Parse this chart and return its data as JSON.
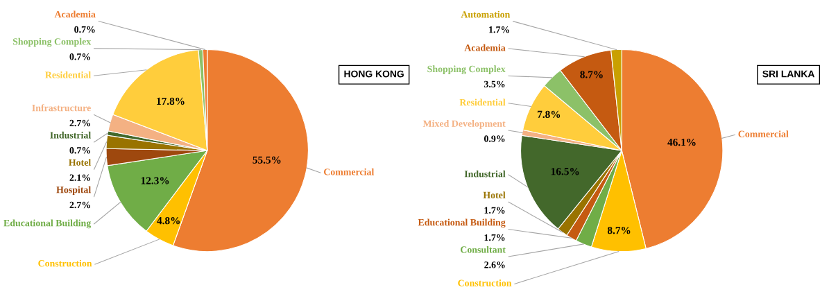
{
  "chart_data": [
    {
      "type": "pie",
      "title": "HONG KONG",
      "categories": [
        "Commercial",
        "Construction",
        "Educational Building",
        "Hospital",
        "Hotel",
        "Industrial",
        "Infrastructure",
        "Residential",
        "Shopping Complex",
        "Academia"
      ],
      "values": [
        55.5,
        4.8,
        12.3,
        2.7,
        2.1,
        0.7,
        2.7,
        17.8,
        0.7,
        0.7
      ],
      "value_labels": [
        "55.5%",
        "4.8%",
        "12.3%",
        "2.7%",
        "2.1%",
        "0.7%",
        "2.7%",
        "17.8%",
        "0.7%",
        "0.7%"
      ],
      "colors": [
        "#ed7d31",
        "#ffc000",
        "#70ad47",
        "#9e480e",
        "#997300",
        "#43682b",
        "#f4b183",
        "#ffcd3c",
        "#8cc168",
        "#ed7d31"
      ],
      "legend": false
    },
    {
      "type": "pie",
      "title": "SRI LANKA",
      "categories": [
        "Commercial",
        "Construction",
        "Consultant",
        "Educational Building",
        "Hotel",
        "Industrial",
        "Mixed Development",
        "Residential",
        "Shopping Complex",
        "Academia",
        "Automation"
      ],
      "values": [
        46.1,
        8.7,
        2.6,
        1.7,
        1.7,
        16.5,
        0.9,
        7.8,
        3.5,
        8.7,
        1.7
      ],
      "value_labels": [
        "46.1%",
        "8.7%",
        "2.6%",
        "1.7%",
        "1.7%",
        "16.5%",
        "0.9%",
        "7.8%",
        "3.5%",
        "8.7%",
        "1.7%"
      ],
      "colors": [
        "#ed7d31",
        "#ffc000",
        "#70ad47",
        "#c55a11",
        "#997300",
        "#43682b",
        "#f4b183",
        "#ffcd3c",
        "#8cc168",
        "#c55a11",
        "#c9a000"
      ],
      "legend": false
    }
  ]
}
